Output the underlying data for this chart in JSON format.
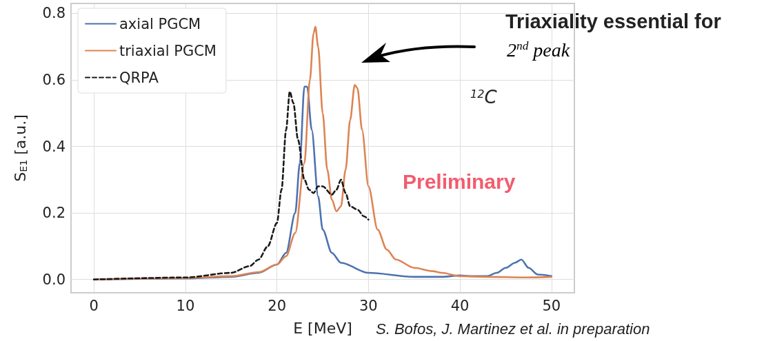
{
  "chart_data": {
    "type": "line",
    "xlabel": "E [MeV]",
    "ylabel": "S$_{E1}$ [a.u.]",
    "xlim": [
      -2.5,
      52.5
    ],
    "xticks": [
      0,
      10,
      20,
      30,
      40,
      50
    ],
    "ylim": [
      -0.04,
      0.83
    ],
    "yticks": [
      {
        "value": 0,
        "label": "0.0"
      },
      0.2,
      0.4,
      0.6,
      0.8
    ],
    "grid": true,
    "legend": "top left",
    "marker": "none",
    "series": [
      {
        "name": "axial PGCM",
        "color": "#4c72b0",
        "line_style": "solid",
        "x": [
          0,
          10,
          15,
          18,
          20,
          21,
          22,
          22.5,
          23,
          23.3,
          23.8,
          24.5,
          25,
          26,
          27,
          30,
          35,
          38,
          40,
          41,
          43,
          44,
          45,
          46,
          46.7,
          47.5,
          48.5,
          50
        ],
        "values": [
          0,
          0.003,
          0.008,
          0.02,
          0.045,
          0.08,
          0.2,
          0.35,
          0.58,
          0.58,
          0.45,
          0.25,
          0.15,
          0.08,
          0.05,
          0.02,
          0.008,
          0.008,
          0.012,
          0.01,
          0.01,
          0.02,
          0.035,
          0.05,
          0.06,
          0.035,
          0.015,
          0.01
        ]
      },
      {
        "name": "triaxial PGCM",
        "color": "#dd8452",
        "line_style": "solid",
        "x": [
          0,
          10,
          15,
          18,
          20,
          21,
          22,
          23,
          23.6,
          24,
          24.2,
          24.5,
          25,
          25.5,
          26,
          26.5,
          27,
          27.5,
          28,
          28.5,
          28.8,
          29.3,
          30,
          31,
          32,
          33,
          35,
          37,
          38,
          40,
          43,
          47,
          50
        ],
        "values": [
          0,
          0.004,
          0.01,
          0.022,
          0.045,
          0.07,
          0.14,
          0.35,
          0.6,
          0.74,
          0.76,
          0.7,
          0.5,
          0.33,
          0.24,
          0.205,
          0.22,
          0.33,
          0.48,
          0.585,
          0.575,
          0.45,
          0.28,
          0.15,
          0.09,
          0.06,
          0.035,
          0.025,
          0.02,
          0.01,
          0.008,
          0.006,
          0.008
        ]
      },
      {
        "name": "QRPA",
        "color": "#1a1a1a",
        "line_style": "dashed",
        "x": [
          0,
          10,
          15,
          17,
          18,
          19,
          20,
          20.5,
          21,
          21.4,
          21.8,
          22.3,
          23,
          23.5,
          24,
          24.5,
          25,
          26,
          26.5,
          27,
          27.5,
          28,
          28.8,
          29.5,
          30
        ],
        "values": [
          0,
          0.006,
          0.02,
          0.04,
          0.06,
          0.1,
          0.17,
          0.27,
          0.45,
          0.565,
          0.53,
          0.42,
          0.3,
          0.27,
          0.26,
          0.28,
          0.28,
          0.255,
          0.27,
          0.3,
          0.26,
          0.22,
          0.21,
          0.19,
          0.18
        ]
      }
    ],
    "annotations": [
      "Triaxiality essential for",
      "2$^{nd}$ peak",
      "$^{12}$C",
      "Preliminary",
      "S. Bofos, J. Martinez et al. in preparation"
    ]
  }
}
